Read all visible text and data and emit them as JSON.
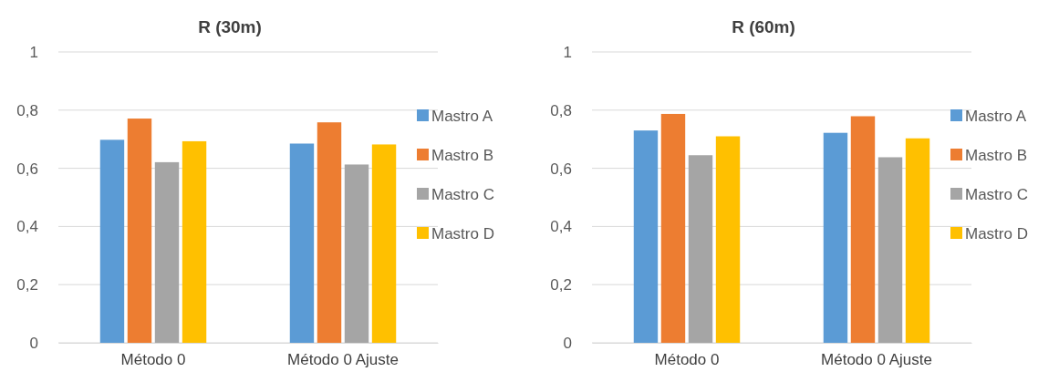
{
  "chart_data": [
    {
      "type": "bar",
      "title": "R (30m)",
      "categories": [
        "Método 0",
        "Método 0 Ajuste"
      ],
      "series": [
        {
          "name": "Mastro A",
          "color": "#5b9bd5",
          "values": [
            0.698,
            0.685
          ]
        },
        {
          "name": "Mastro B",
          "color": "#ed7d31",
          "values": [
            0.771,
            0.758
          ]
        },
        {
          "name": "Mastro C",
          "color": "#a5a5a5",
          "values": [
            0.621,
            0.613
          ]
        },
        {
          "name": "Mastro D",
          "color": "#ffc000",
          "values": [
            0.693,
            0.682
          ]
        }
      ],
      "ylim": [
        0,
        1
      ],
      "yticks": [
        {
          "value": 0,
          "label": "0"
        },
        {
          "value": 0.2,
          "label": "0,2"
        },
        {
          "value": 0.4,
          "label": "0,4"
        },
        {
          "value": 0.6,
          "label": "0,6"
        },
        {
          "value": 0.8,
          "label": "0,8"
        },
        {
          "value": 1,
          "label": "1"
        }
      ],
      "grid": "y",
      "legend": "right"
    },
    {
      "type": "bar",
      "title": "R (60m)",
      "categories": [
        "Método 0",
        "Método 0 Ajuste"
      ],
      "series": [
        {
          "name": "Mastro A",
          "color": "#5b9bd5",
          "values": [
            0.73,
            0.722
          ]
        },
        {
          "name": "Mastro B",
          "color": "#ed7d31",
          "values": [
            0.787,
            0.779
          ]
        },
        {
          "name": "Mastro C",
          "color": "#a5a5a5",
          "values": [
            0.645,
            0.638
          ]
        },
        {
          "name": "Mastro D",
          "color": "#ffc000",
          "values": [
            0.71,
            0.703
          ]
        }
      ],
      "ylim": [
        0,
        1
      ],
      "yticks": [
        {
          "value": 0,
          "label": "0"
        },
        {
          "value": 0.2,
          "label": "0,2"
        },
        {
          "value": 0.4,
          "label": "0,4"
        },
        {
          "value": 0.6,
          "label": "0,6"
        },
        {
          "value": 0.8,
          "label": "0,8"
        },
        {
          "value": 1,
          "label": "1"
        }
      ],
      "grid": "y",
      "legend": "right"
    }
  ]
}
